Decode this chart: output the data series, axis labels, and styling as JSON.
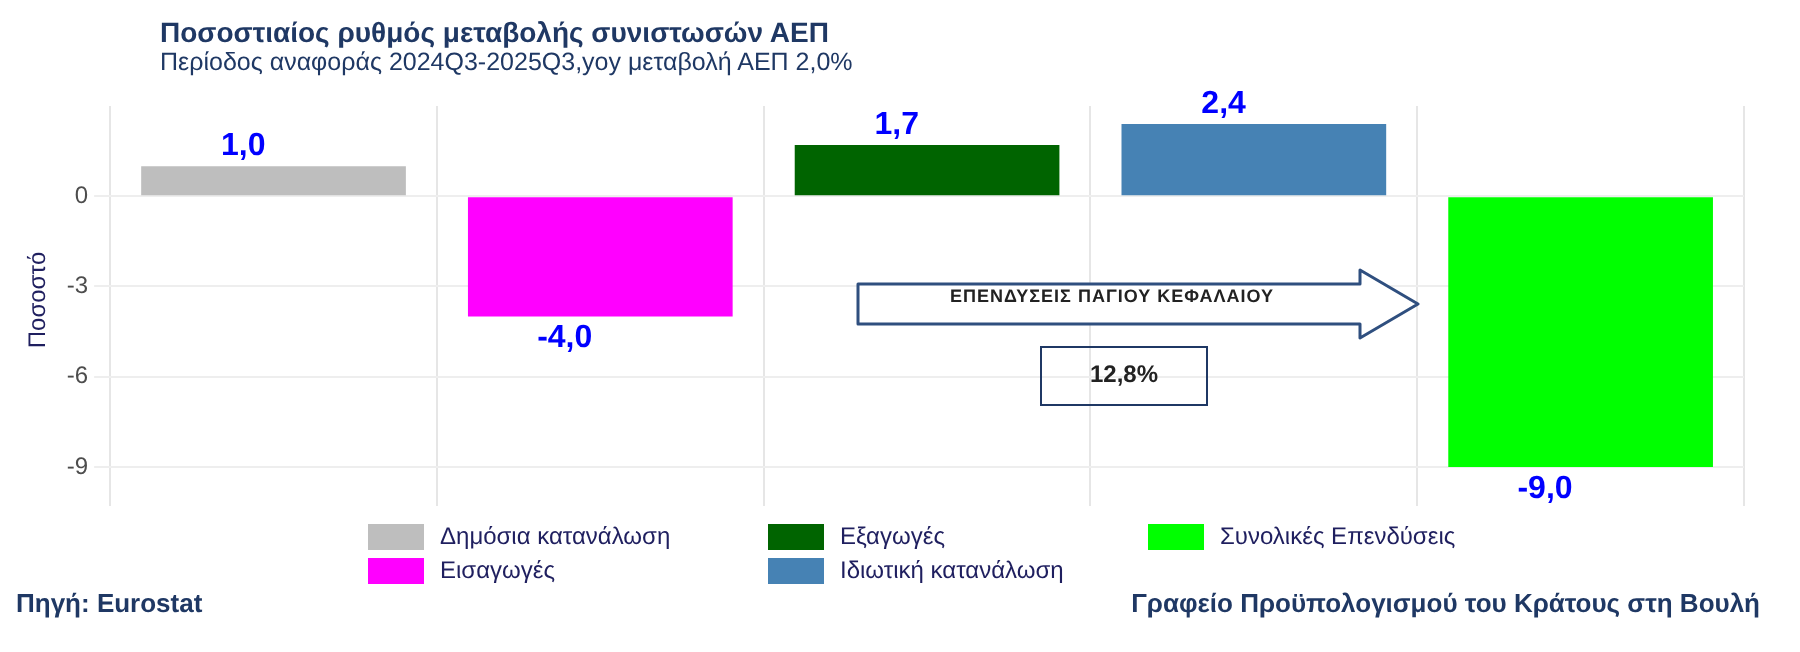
{
  "chart_data": {
    "type": "bar",
    "title": "Ποσοστιαίος ρυθμός μεταβολής συνιστωσών ΑΕΠ",
    "subtitle": "Περίοδος αναφοράς 2024Q3-2025Q3,yoy μεταβολή ΑΕΠ 2,0%",
    "ylabel": "Ποσοστό",
    "categories": [
      null,
      null,
      null,
      null,
      null
    ],
    "series": [
      {
        "name": "Δημόσια κατανάλωση",
        "color": "#bebebe",
        "values": [
          1.0,
          null,
          null,
          null,
          null
        ],
        "value_labels": [
          "1,0",
          null,
          null,
          null,
          null
        ]
      },
      {
        "name": "Εισαγωγές",
        "color": "#ff00ff",
        "values": [
          null,
          -4.0,
          null,
          null,
          null
        ],
        "value_labels": [
          null,
          "-4,0",
          null,
          null,
          null
        ]
      },
      {
        "name": "Εξαγωγές",
        "color": "#006400",
        "values": [
          null,
          null,
          1.7,
          null,
          null
        ],
        "value_labels": [
          null,
          null,
          "1,7",
          null,
          null
        ]
      },
      {
        "name": "Ιδιωτική κατανάλωση",
        "color": "#4682b4",
        "values": [
          null,
          null,
          null,
          2.4,
          null
        ],
        "value_labels": [
          null,
          null,
          null,
          "2,4",
          null
        ]
      },
      {
        "name": "Συνολικές Επενδύσεις",
        "color": "#00ff00",
        "values": [
          null,
          null,
          null,
          null,
          -9.0
        ],
        "value_labels": [
          null,
          null,
          null,
          null,
          "-9,0"
        ]
      }
    ],
    "ylim": [
      -9.9,
      3
    ],
    "yticks": [
      0,
      -3,
      -6,
      -9
    ],
    "grid": true,
    "legend": "bottom",
    "tick_labels": "y",
    "annotations": [
      "ΕΠΕΝΔΥΣΕΙΣ ΠΑΓΙΟΥ ΚΕΦΑΛΑΙΟΥ",
      "12,8%",
      "Πηγή: Eurostat",
      "Γραφείο Προϋπολογισμού του Κράτους στη Βουλή"
    ]
  }
}
